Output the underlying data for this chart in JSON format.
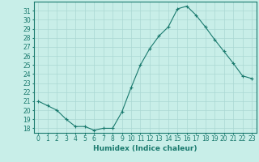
{
  "x": [
    0,
    1,
    2,
    3,
    4,
    5,
    6,
    7,
    8,
    9,
    10,
    11,
    12,
    13,
    14,
    15,
    16,
    17,
    18,
    19,
    20,
    21,
    22,
    23
  ],
  "y": [
    21.0,
    20.5,
    20.0,
    19.0,
    18.2,
    18.2,
    17.8,
    18.0,
    18.0,
    19.8,
    22.5,
    25.0,
    26.8,
    28.2,
    29.2,
    31.2,
    31.5,
    30.5,
    29.2,
    27.8,
    26.5,
    25.2,
    23.8,
    23.5
  ],
  "line_color": "#1a7a6e",
  "marker": "+",
  "marker_size": 3,
  "bg_color": "#c8eee8",
  "grid_color": "#aad8d3",
  "xlabel": "Humidex (Indice chaleur)",
  "xlim": [
    -0.5,
    23.5
  ],
  "ylim": [
    17.5,
    32
  ],
  "yticks": [
    18,
    19,
    20,
    21,
    22,
    23,
    24,
    25,
    26,
    27,
    28,
    29,
    30,
    31
  ],
  "xticks": [
    0,
    1,
    2,
    3,
    4,
    5,
    6,
    7,
    8,
    9,
    10,
    11,
    12,
    13,
    14,
    15,
    16,
    17,
    18,
    19,
    20,
    21,
    22,
    23
  ],
  "tick_fontsize": 5.5,
  "label_fontsize": 6.5
}
